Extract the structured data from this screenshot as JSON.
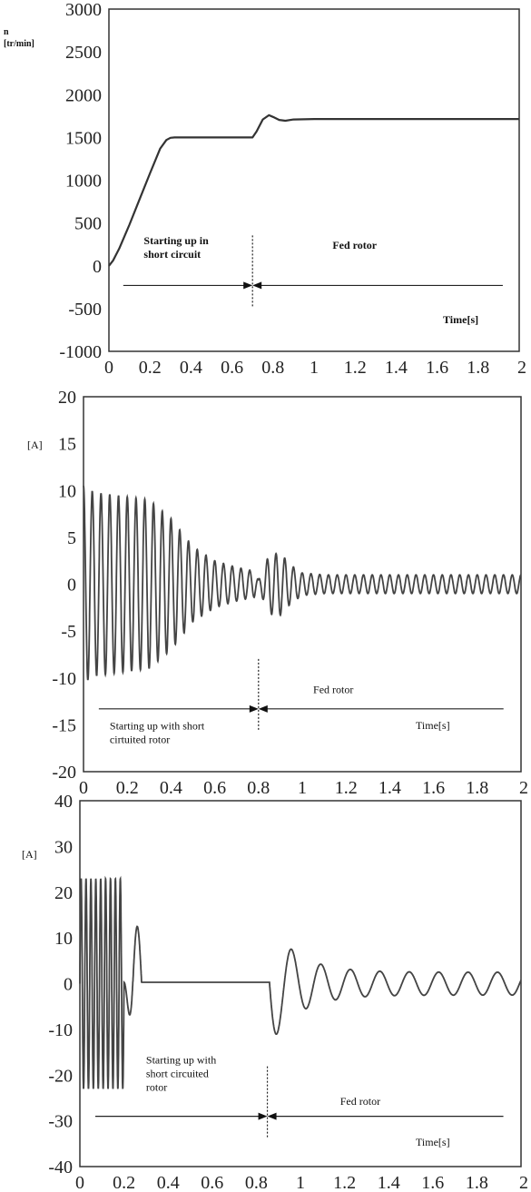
{
  "chart_data": [
    {
      "type": "line",
      "ylabel": "n",
      "ylabel_unit": "[tr/min]",
      "xlabel": "Time[s]",
      "xlim": [
        0,
        2
      ],
      "ylim": [
        -1000,
        3000
      ],
      "xticks": [
        "0",
        "0.2",
        "0.4",
        "0.6",
        "0.8",
        "1",
        "1.2",
        "1.4",
        "1.6",
        "1.8",
        "2"
      ],
      "yticks": [
        "3000",
        "2500",
        "2000",
        "1500",
        "1000",
        "500",
        "0",
        "-500",
        "-1000"
      ],
      "series": [
        {
          "x": [
            0,
            0.02,
            0.05,
            0.1,
            0.15,
            0.2,
            0.25,
            0.28,
            0.3,
            0.32,
            0.35,
            0.5,
            0.7,
            0.72,
            0.75,
            0.78,
            0.8,
            0.83,
            0.86,
            0.9,
            1.0,
            1.5,
            2.0
          ],
          "y": [
            0,
            60,
            200,
            480,
            780,
            1080,
            1370,
            1470,
            1495,
            1500,
            1500,
            1500,
            1500,
            1570,
            1710,
            1760,
            1740,
            1705,
            1695,
            1710,
            1715,
            1715,
            1715
          ]
        }
      ],
      "annotations": [
        {
          "text_lines": [
            "Starting up in",
            "short circuit"
          ],
          "x": 0.17,
          "y": 250
        },
        {
          "text_lines": [
            "Fed rotor"
          ],
          "x": 1.09,
          "y": 200
        }
      ],
      "divider_x": 0.7,
      "arrow_y": -230
    },
    {
      "type": "line",
      "ylabel": "[A]",
      "xlabel": "Time[s]",
      "xlim": [
        0,
        2
      ],
      "ylim": [
        -20,
        20
      ],
      "xticks": [
        "0",
        "0.2",
        "0.4",
        "0.6",
        "0.8",
        "1",
        "1.2",
        "1.4",
        "1.6",
        "1.8",
        "2"
      ],
      "yticks": [
        "20",
        "15",
        "10",
        "5",
        "0",
        "-5",
        "-10",
        "-15",
        "-20"
      ],
      "signal": {
        "frequency_hz": 25,
        "envelope": {
          "t": [
            0,
            0.05,
            0.3,
            0.4,
            0.5,
            0.6,
            0.7,
            0.78,
            0.8,
            0.85,
            0.9,
            0.95,
            1.0,
            1.1,
            2.0
          ],
          "amp": [
            10.5,
            9.8,
            9.0,
            7.0,
            4.0,
            2.5,
            1.8,
            1.4,
            0.5,
            3.2,
            3.3,
            2.0,
            1.2,
            1.0,
            1.0
          ]
        }
      },
      "annotations": [
        {
          "text_lines": [
            "Fed rotor"
          ],
          "x": 1.05,
          "y": -11.6
        },
        {
          "text_lines": [
            "Starting up with short",
            "cirtuited rotor"
          ],
          "x": 0.12,
          "y": -15.5
        }
      ],
      "divider_x": 0.8,
      "arrow_y": -13.3
    },
    {
      "type": "line",
      "ylabel": "[A]",
      "xlabel": "Time[s]",
      "xlim": [
        0,
        2
      ],
      "ylim": [
        -40,
        40
      ],
      "xticks": [
        "0",
        "0.2",
        "0.4",
        "0.6",
        "0.8",
        "1",
        "1.2",
        "1.4",
        "1.6",
        "1.8",
        "2"
      ],
      "yticks": [
        "40",
        "30",
        "20",
        "10",
        "0",
        "-10",
        "-20",
        "-30",
        "-40"
      ],
      "signal": {
        "segments": [
          {
            "t0": 0,
            "t1": 0.2,
            "frequency_hz": 45,
            "amp": 23
          },
          {
            "t0": 0.24,
            "t1": 0.28,
            "peak": 12.5
          },
          {
            "t0": 0.28,
            "t1": 0.86,
            "value": 0.3
          },
          {
            "t0": 0.86,
            "t1": 2.0,
            "frequency_hz": 7.5,
            "amp_start": 11,
            "amp_end": 2.5
          }
        ]
      },
      "annotations": [
        {
          "text_lines": [
            "Starting up with",
            "short circuited",
            "rotor"
          ],
          "x": 0.3,
          "y": -17.5
        },
        {
          "text_lines": [
            "Fed rotor"
          ],
          "x": 1.18,
          "y": -26.5
        }
      ],
      "divider_x": 0.85,
      "arrow_y": -29
    }
  ]
}
